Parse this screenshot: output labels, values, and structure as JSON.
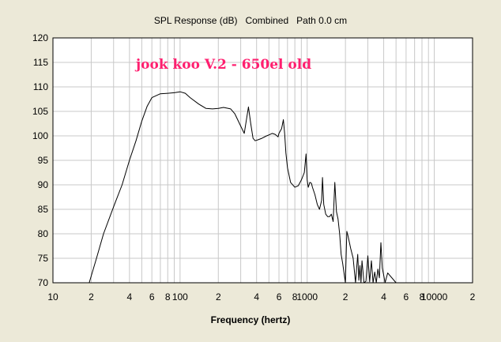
{
  "chart_data": {
    "type": "line",
    "title": "SPL Response (dB)   Combined   Path 0.0 cm",
    "annotation": "jook koo V.2 - 650el old",
    "xlabel": "Frequency (hertz)",
    "ylabel": "",
    "x_scale": "log",
    "xlim": [
      10,
      20000
    ],
    "ylim": [
      70,
      120
    ],
    "y_ticks": [
      "120",
      "115",
      "110",
      "105",
      "100",
      "95",
      "90",
      "85",
      "80",
      "75",
      "70"
    ],
    "x_ticks": [
      {
        "v": 10,
        "label": "10"
      },
      {
        "v": 20,
        "label": "2"
      },
      {
        "v": 40,
        "label": "4"
      },
      {
        "v": 60,
        "label": "6"
      },
      {
        "v": 80,
        "label": "8"
      },
      {
        "v": 100,
        "label": "100"
      },
      {
        "v": 200,
        "label": "2"
      },
      {
        "v": 400,
        "label": "4"
      },
      {
        "v": 600,
        "label": "6"
      },
      {
        "v": 800,
        "label": "8"
      },
      {
        "v": 1000,
        "label": "1000"
      },
      {
        "v": 2000,
        "label": "2"
      },
      {
        "v": 4000,
        "label": "4"
      },
      {
        "v": 6000,
        "label": "6"
      },
      {
        "v": 8000,
        "label": "8"
      },
      {
        "v": 10000,
        "label": "10000"
      },
      {
        "v": 20000,
        "label": "2"
      }
    ],
    "grid": true,
    "colors": {
      "background": "#ece9d8",
      "plot": "#ffffff",
      "grid": "#c8c8c8",
      "line": "#000000",
      "annotation": "#ff1f6f"
    },
    "series": [
      {
        "x": [
          19.3,
          22,
          25,
          30,
          35,
          40,
          45,
          50,
          55,
          60,
          70,
          80,
          90,
          100,
          110,
          120,
          140,
          160,
          180,
          200,
          220,
          250,
          270,
          300,
          320,
          345,
          360,
          375,
          390,
          410,
          440,
          480,
          500,
          530,
          560,
          590,
          600,
          630,
          650,
          665,
          680,
          700,
          740,
          800,
          850,
          900,
          950,
          980,
          1000,
          1020,
          1050,
          1080,
          1100,
          1150,
          1200,
          1250,
          1300,
          1320,
          1350,
          1400,
          1450,
          1500,
          1550,
          1600,
          1650,
          1700,
          1750,
          1800,
          1850,
          1900,
          2000,
          2050,
          2100,
          2200,
          2300,
          2400,
          2500,
          2550,
          2600,
          2650,
          2700,
          2800,
          2900,
          3000,
          3100,
          3200,
          3300,
          3400,
          3500,
          3600,
          3700,
          3800,
          3900,
          4000,
          4100,
          4300,
          5000
        ],
        "y": [
          70,
          75,
          80,
          85.5,
          90,
          95,
          99,
          103,
          106,
          107.8,
          108.6,
          108.7,
          108.8,
          109,
          108.7,
          107.8,
          106.5,
          105.6,
          105.5,
          105.6,
          105.8,
          105.5,
          104.5,
          102,
          100.5,
          105.9,
          102.5,
          99.5,
          99,
          99.2,
          99.5,
          100,
          100.2,
          100.5,
          100.3,
          99.8,
          100.5,
          101.5,
          103.3,
          100.5,
          96.5,
          93.5,
          90.5,
          89.5,
          89.8,
          91,
          92.5,
          96.3,
          91,
          89.5,
          90.5,
          90.3,
          89.5,
          88,
          86,
          85,
          86.8,
          91.5,
          86,
          84,
          83.5,
          83.5,
          84,
          82.5,
          90.5,
          84.5,
          83,
          80,
          75.8,
          74,
          70,
          80.5,
          79.5,
          77,
          75,
          70,
          75.8,
          70.5,
          73.5,
          70,
          74.5,
          70,
          70.3,
          75.5,
          70.2,
          74.5,
          70,
          72.2,
          70,
          72.8,
          71,
          78.2,
          73,
          71.5,
          70,
          72,
          70
        ]
      }
    ]
  }
}
